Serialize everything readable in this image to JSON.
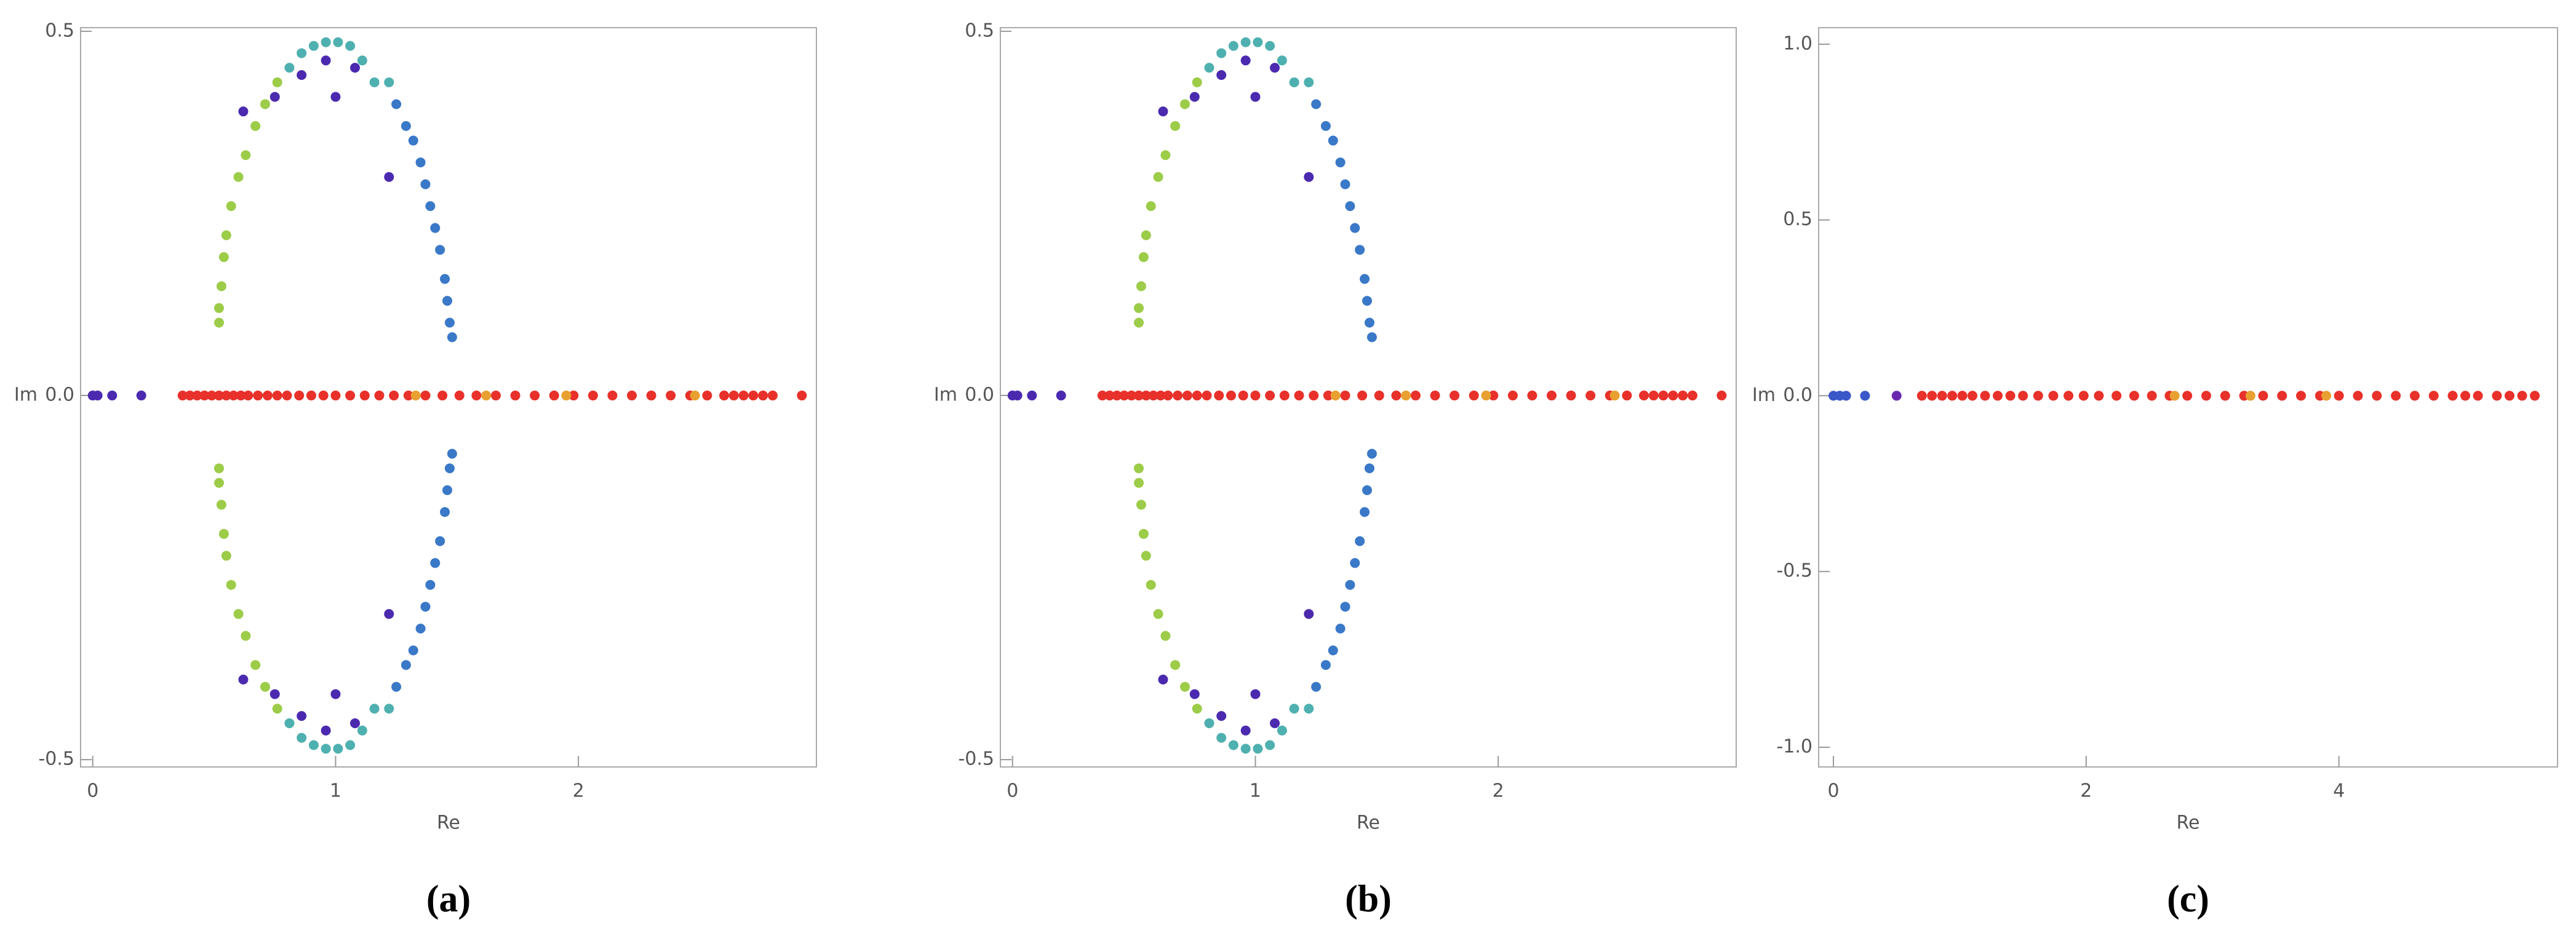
{
  "chart_data": [
    {
      "type": "scatter",
      "caption": "(a)",
      "xlabel": "Re",
      "ylabel": "Im",
      "xlim": [
        -0.05,
        2.98
      ],
      "ylim": [
        -0.51,
        0.505
      ],
      "xticks": [
        0,
        1,
        2
      ],
      "yticks": [
        -0.5,
        {
          "value": 0,
          "label": "0.0"
        },
        0.5
      ],
      "series": [
        {
          "color": "#e8312a",
          "x": [
            0.37,
            0.4,
            0.43,
            0.46,
            0.49,
            0.52,
            0.55,
            0.58,
            0.61,
            0.64,
            0.68,
            0.72,
            0.76,
            0.8,
            0.85,
            0.9,
            0.95,
            1.0,
            1.06,
            1.12,
            1.18,
            1.24,
            1.3,
            1.37,
            1.44,
            1.51,
            1.58,
            1.66,
            1.74,
            1.82,
            1.9,
            1.98,
            2.06,
            2.14,
            2.22,
            2.3,
            2.38,
            2.46,
            2.53,
            2.6,
            2.64,
            2.68,
            2.72,
            2.76,
            2.8,
            2.92
          ],
          "y": [
            0,
            0,
            0,
            0,
            0,
            0,
            0,
            0,
            0,
            0,
            0,
            0,
            0,
            0,
            0,
            0,
            0,
            0,
            0,
            0,
            0,
            0,
            0,
            0,
            0,
            0,
            0,
            0,
            0,
            0,
            0,
            0,
            0,
            0,
            0,
            0,
            0,
            0,
            0,
            0,
            0,
            0,
            0,
            0,
            0,
            0
          ]
        },
        {
          "color": "#e8a030",
          "x": [
            1.33,
            1.62,
            1.95,
            2.48
          ],
          "y": [
            0,
            0,
            0,
            0
          ]
        },
        {
          "color": "#4b2ab0",
          "x": [
            0,
            0.02,
            0.08,
            0.2
          ],
          "y": [
            0,
            0,
            0,
            0
          ]
        },
        {
          "color": "#9ccc48",
          "x": [
            0.52,
            0.52,
            0.53,
            0.54,
            0.55,
            0.57,
            0.6,
            0.63,
            0.67,
            0.71,
            0.76,
            0.52,
            0.52,
            0.53,
            0.54,
            0.55,
            0.57,
            0.6,
            0.63,
            0.67,
            0.71,
            0.76
          ],
          "y": [
            0.1,
            0.12,
            0.15,
            0.19,
            0.22,
            0.26,
            0.3,
            0.33,
            0.37,
            0.4,
            0.43,
            -0.1,
            -0.12,
            -0.15,
            -0.19,
            -0.22,
            -0.26,
            -0.3,
            -0.33,
            -0.37,
            -0.4,
            -0.43
          ]
        },
        {
          "color": "#4fb0b0",
          "x": [
            0.81,
            0.86,
            0.91,
            0.96,
            1.01,
            1.06,
            1.11,
            1.16,
            1.22,
            0.81,
            0.86,
            0.91,
            0.96,
            1.01,
            1.06,
            1.11,
            1.16,
            1.22
          ],
          "y": [
            0.45,
            0.47,
            0.48,
            0.485,
            0.485,
            0.48,
            0.46,
            0.43,
            0.43,
            -0.45,
            -0.47,
            -0.48,
            -0.485,
            -0.485,
            -0.48,
            -0.46,
            -0.43,
            -0.43
          ]
        },
        {
          "color": "#3a78c8",
          "x": [
            1.25,
            1.29,
            1.32,
            1.35,
            1.37,
            1.39,
            1.41,
            1.43,
            1.45,
            1.46,
            1.47,
            1.48,
            1.25,
            1.29,
            1.32,
            1.35,
            1.37,
            1.39,
            1.41,
            1.43,
            1.45,
            1.46,
            1.47,
            1.48
          ],
          "y": [
            0.4,
            0.37,
            0.35,
            0.32,
            0.29,
            0.26,
            0.23,
            0.2,
            0.16,
            0.13,
            0.1,
            0.08,
            -0.4,
            -0.37,
            -0.35,
            -0.32,
            -0.29,
            -0.26,
            -0.23,
            -0.2,
            -0.16,
            -0.13,
            -0.1,
            -0.08
          ]
        },
        {
          "color": "#4b2ab0",
          "x": [
            0.62,
            0.75,
            0.86,
            0.96,
            1.0,
            1.08,
            1.22,
            0.62,
            0.75,
            0.86,
            0.96,
            1.0,
            1.08,
            1.22
          ],
          "y": [
            0.39,
            0.41,
            0.44,
            0.46,
            0.41,
            0.45,
            0.3,
            -0.39,
            -0.41,
            -0.44,
            -0.46,
            -0.41,
            -0.45,
            -0.3
          ]
        }
      ]
    },
    {
      "type": "scatter",
      "caption": "(b)",
      "xlabel": "Re",
      "ylabel": "Im",
      "xlim": [
        -0.05,
        2.98
      ],
      "ylim": [
        -0.51,
        0.505
      ],
      "xticks": [
        0,
        1,
        2
      ],
      "yticks": [
        -0.5,
        {
          "value": 0,
          "label": "0.0"
        },
        0.5
      ],
      "series": [
        {
          "color": "#e8312a",
          "x": [
            0.37,
            0.4,
            0.43,
            0.46,
            0.49,
            0.52,
            0.55,
            0.58,
            0.61,
            0.64,
            0.68,
            0.72,
            0.76,
            0.8,
            0.85,
            0.9,
            0.95,
            1.0,
            1.06,
            1.12,
            1.18,
            1.24,
            1.3,
            1.37,
            1.44,
            1.51,
            1.58,
            1.66,
            1.74,
            1.82,
            1.9,
            1.98,
            2.06,
            2.14,
            2.22,
            2.3,
            2.38,
            2.46,
            2.53,
            2.6,
            2.64,
            2.68,
            2.72,
            2.76,
            2.8,
            2.92
          ],
          "y": [
            0,
            0,
            0,
            0,
            0,
            0,
            0,
            0,
            0,
            0,
            0,
            0,
            0,
            0,
            0,
            0,
            0,
            0,
            0,
            0,
            0,
            0,
            0,
            0,
            0,
            0,
            0,
            0,
            0,
            0,
            0,
            0,
            0,
            0,
            0,
            0,
            0,
            0,
            0,
            0,
            0,
            0,
            0,
            0,
            0,
            0
          ]
        },
        {
          "color": "#e8a030",
          "x": [
            1.33,
            1.62,
            1.95,
            2.48
          ],
          "y": [
            0,
            0,
            0,
            0
          ]
        },
        {
          "color": "#4b2ab0",
          "x": [
            0,
            0.02,
            0.08,
            0.2
          ],
          "y": [
            0,
            0,
            0,
            0
          ]
        },
        {
          "color": "#9ccc48",
          "x": [
            0.52,
            0.52,
            0.53,
            0.54,
            0.55,
            0.57,
            0.6,
            0.63,
            0.67,
            0.71,
            0.76,
            0.52,
            0.52,
            0.53,
            0.54,
            0.55,
            0.57,
            0.6,
            0.63,
            0.67,
            0.71,
            0.76
          ],
          "y": [
            0.1,
            0.12,
            0.15,
            0.19,
            0.22,
            0.26,
            0.3,
            0.33,
            0.37,
            0.4,
            0.43,
            -0.1,
            -0.12,
            -0.15,
            -0.19,
            -0.22,
            -0.26,
            -0.3,
            -0.33,
            -0.37,
            -0.4,
            -0.43
          ]
        },
        {
          "color": "#4fb0b0",
          "x": [
            0.81,
            0.86,
            0.91,
            0.96,
            1.01,
            1.06,
            1.11,
            1.16,
            1.22,
            0.81,
            0.86,
            0.91,
            0.96,
            1.01,
            1.06,
            1.11,
            1.16,
            1.22
          ],
          "y": [
            0.45,
            0.47,
            0.48,
            0.485,
            0.485,
            0.48,
            0.46,
            0.43,
            0.43,
            -0.45,
            -0.47,
            -0.48,
            -0.485,
            -0.485,
            -0.48,
            -0.46,
            -0.43,
            -0.43
          ]
        },
        {
          "color": "#3a78c8",
          "x": [
            1.25,
            1.29,
            1.32,
            1.35,
            1.37,
            1.39,
            1.41,
            1.43,
            1.45,
            1.46,
            1.47,
            1.48,
            1.25,
            1.29,
            1.32,
            1.35,
            1.37,
            1.39,
            1.41,
            1.43,
            1.45,
            1.46,
            1.47,
            1.48
          ],
          "y": [
            0.4,
            0.37,
            0.35,
            0.32,
            0.29,
            0.26,
            0.23,
            0.2,
            0.16,
            0.13,
            0.1,
            0.08,
            -0.4,
            -0.37,
            -0.35,
            -0.32,
            -0.29,
            -0.26,
            -0.23,
            -0.2,
            -0.16,
            -0.13,
            -0.1,
            -0.08
          ]
        },
        {
          "color": "#4b2ab0",
          "x": [
            0.62,
            0.75,
            0.86,
            0.96,
            1.0,
            1.08,
            1.22,
            0.62,
            0.75,
            0.86,
            0.96,
            1.0,
            1.08,
            1.22
          ],
          "y": [
            0.39,
            0.41,
            0.44,
            0.46,
            0.41,
            0.45,
            0.3,
            -0.39,
            -0.41,
            -0.44,
            -0.46,
            -0.41,
            -0.45,
            -0.3
          ]
        }
      ]
    },
    {
      "type": "scatter",
      "caption": "(c)",
      "xlabel": "Re",
      "ylabel": "Im",
      "xlim": [
        -0.117,
        5.73
      ],
      "ylim": [
        -1.056,
        1.047
      ],
      "xticks": [
        0,
        2,
        4
      ],
      "yticks": [
        {
          "value": -1,
          "label": "-1.0"
        },
        -0.5,
        {
          "value": 0,
          "label": "0.0"
        },
        0.5,
        {
          "value": 1,
          "label": "1.0"
        }
      ],
      "series": [
        {
          "color": "#e8312a",
          "x": [
            0.7,
            0.78,
            0.86,
            0.94,
            1.02,
            1.1,
            1.2,
            1.3,
            1.4,
            1.5,
            1.62,
            1.74,
            1.86,
            1.98,
            2.1,
            2.24,
            2.38,
            2.52,
            2.66,
            2.8,
            2.95,
            3.1,
            3.25,
            3.4,
            3.55,
            3.7,
            3.85,
            4.0,
            4.15,
            4.3,
            4.45,
            4.6,
            4.75,
            4.9,
            5.0,
            5.1,
            5.25,
            5.35,
            5.45,
            5.55
          ],
          "y": [
            0,
            0,
            0,
            0,
            0,
            0,
            0,
            0,
            0,
            0,
            0,
            0,
            0,
            0,
            0,
            0,
            0,
            0,
            0,
            0,
            0,
            0,
            0,
            0,
            0,
            0,
            0,
            0,
            0,
            0,
            0,
            0,
            0,
            0,
            0,
            0,
            0,
            0,
            0,
            0
          ]
        },
        {
          "color": "#e8a030",
          "x": [
            2.7,
            3.3,
            3.9
          ],
          "y": [
            0,
            0,
            0
          ]
        },
        {
          "color": "#3a58c8",
          "x": [
            0,
            0.05,
            0.1,
            0.25
          ],
          "y": [
            0,
            0,
            0,
            0
          ]
        },
        {
          "color": "#6a2ab0",
          "x": [
            0.5
          ],
          "y": [
            0
          ]
        }
      ]
    }
  ]
}
